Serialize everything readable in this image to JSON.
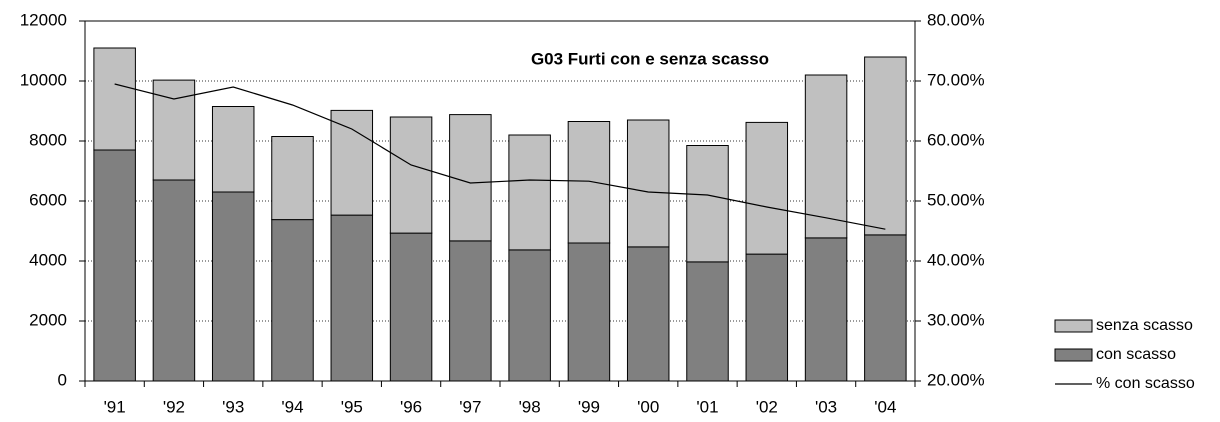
{
  "chart_data": {
    "type": "bar",
    "title": "G03   Furti con e senza scasso",
    "categories": [
      "'91",
      "'92",
      "'93",
      "'94",
      "'95",
      "'96",
      "'97",
      "'98",
      "'99",
      "'00",
      "'01",
      "'02",
      "'03",
      "'04"
    ],
    "series": [
      {
        "name": "con scasso",
        "color": "#808080",
        "values": [
          7700,
          6700,
          6300,
          5380,
          5530,
          4930,
          4670,
          4370,
          4600,
          4470,
          3970,
          4230,
          4770,
          4870
        ]
      },
      {
        "name": "senza scasso",
        "color": "#c0c0c0",
        "values": [
          3400,
          3330,
          2850,
          2770,
          3490,
          3870,
          4210,
          3830,
          4050,
          4230,
          3880,
          4390,
          5430,
          5930
        ]
      },
      {
        "name": "% con scasso",
        "color": "#000000",
        "type": "line",
        "axis": "y2",
        "values": [
          69.5,
          67,
          69,
          66,
          62,
          56,
          53,
          53.5,
          53.3,
          51.5,
          51,
          49,
          47.2,
          45.3
        ]
      }
    ],
    "ylim": [
      0,
      12000
    ],
    "yticks": [
      0,
      2000,
      4000,
      6000,
      8000,
      10000,
      12000
    ],
    "y2lim": [
      20,
      80
    ],
    "y2ticks": [
      {
        "value": 20,
        "label": "20.00%"
      },
      {
        "value": 30,
        "label": "30.00%"
      },
      {
        "value": 40,
        "label": "40.00%"
      },
      {
        "value": 50,
        "label": "50.00%"
      },
      {
        "value": 60,
        "label": "60.00%"
      },
      {
        "value": 70,
        "label": "70.00%"
      },
      {
        "value": 80,
        "label": "80.00%"
      }
    ],
    "grid": true,
    "stacked": true,
    "legend": "bottom-right"
  }
}
